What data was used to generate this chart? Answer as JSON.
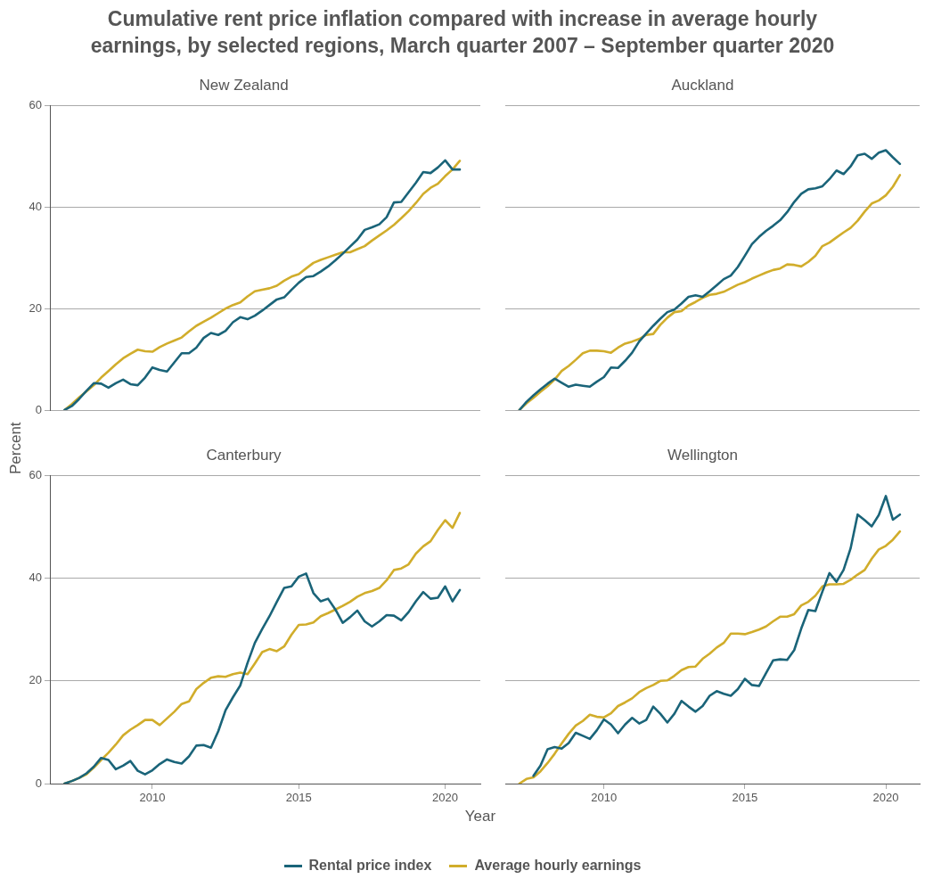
{
  "chart_data": [
    {
      "type": "line",
      "title": "Cumulative rent price inflation compared with increase in average hourly earnings, by selected regions, March quarter 2007 – September quarter 2020",
      "subtitle": "New Zealand",
      "x": [
        2007,
        2007.25,
        2007.5,
        2007.75,
        2008,
        2008.25,
        2008.5,
        2008.75,
        2009,
        2009.25,
        2009.5,
        2009.75,
        2010,
        2010.25,
        2010.5,
        2010.75,
        2011,
        2011.25,
        2011.5,
        2011.75,
        2012,
        2012.25,
        2012.5,
        2012.75,
        2013,
        2013.25,
        2013.5,
        2013.75,
        2014,
        2014.25,
        2014.5,
        2014.75,
        2015,
        2015.25,
        2015.5,
        2015.75,
        2016,
        2016.25,
        2016.5,
        2016.75,
        2017,
        2017.25,
        2017.5,
        2017.75,
        2018,
        2018.25,
        2018.5,
        2018.75,
        2019,
        2019.25,
        2019.5,
        2019.75,
        2020,
        2020.25,
        2020.5
      ],
      "series": [
        {
          "name": "Rental price index",
          "color": "#1a6479",
          "values": [
            0,
            0.8,
            2.2,
            3.8,
            5.3,
            5.2,
            4.4,
            5.3,
            6.0,
            5.1,
            4.9,
            6.4,
            8.4,
            7.9,
            7.6,
            9.4,
            11.2,
            11.2,
            12.3,
            14.2,
            15.2,
            14.8,
            15.6,
            17.3,
            18.3,
            17.9,
            18.6,
            19.6,
            20.7,
            21.8,
            22.2,
            23.7,
            25.1,
            26.2,
            26.4,
            27.3,
            28.3,
            29.5,
            30.8,
            32.2,
            33.6,
            35.5,
            36.0,
            36.6,
            38.0,
            40.9,
            41.0,
            42.9,
            44.8,
            46.9,
            46.7,
            47.8,
            49.2,
            47.4,
            47.4
          ]
        },
        {
          "name": "Average hourly earnings",
          "color": "#d1ad2b",
          "values": [
            0,
            1.2,
            2.5,
            3.7,
            4.9,
            6.4,
            7.7,
            9.0,
            10.2,
            11.1,
            11.9,
            11.6,
            11.5,
            12.4,
            13.1,
            13.7,
            14.3,
            15.5,
            16.6,
            17.4,
            18.2,
            19.1,
            20.0,
            20.7,
            21.2,
            22.4,
            23.4,
            23.7,
            24.0,
            24.5,
            25.5,
            26.3,
            26.8,
            27.9,
            29.0,
            29.6,
            30.1,
            30.6,
            31.1,
            31.1,
            31.7,
            32.3,
            33.4,
            34.4,
            35.4,
            36.5,
            37.8,
            39.2,
            40.8,
            42.6,
            43.8,
            44.6,
            46.1,
            47.4,
            49.1
          ]
        }
      ],
      "xlim": [
        2006.5,
        2021.2
      ],
      "xticks": [
        2010,
        2015,
        2020
      ],
      "ylim": [
        0,
        60
      ],
      "yticks": [
        0,
        20,
        40,
        60
      ],
      "grid": "y",
      "tick_labels": "y",
      "legend": "bottom",
      "marker": "none",
      "line_style": "solid"
    },
    {
      "type": "line",
      "subtitle": "Auckland",
      "x": [
        2007,
        2007.25,
        2007.5,
        2007.75,
        2008,
        2008.25,
        2008.5,
        2008.75,
        2009,
        2009.25,
        2009.5,
        2009.75,
        2010,
        2010.25,
        2010.5,
        2010.75,
        2011,
        2011.25,
        2011.5,
        2011.75,
        2012,
        2012.25,
        2012.5,
        2012.75,
        2013,
        2013.25,
        2013.5,
        2013.75,
        2014,
        2014.25,
        2014.5,
        2014.75,
        2015,
        2015.25,
        2015.5,
        2015.75,
        2016,
        2016.25,
        2016.5,
        2016.75,
        2017,
        2017.25,
        2017.5,
        2017.75,
        2018,
        2018.25,
        2018.5,
        2018.75,
        2019,
        2019.25,
        2019.5,
        2019.75,
        2020,
        2020.25,
        2020.5
      ],
      "series": [
        {
          "color": "#1a6479",
          "values": [
            0,
            1.6,
            2.9,
            4.1,
            5.2,
            6.2,
            5.4,
            4.6,
            5.0,
            4.8,
            4.6,
            5.6,
            6.5,
            8.4,
            8.3,
            9.7,
            11.3,
            13.5,
            15.1,
            16.6,
            18.0,
            19.3,
            19.8,
            21.0,
            22.3,
            22.6,
            22.3,
            23.4,
            24.6,
            25.8,
            26.5,
            28.2,
            30.4,
            32.7,
            34.1,
            35.3,
            36.3,
            37.4,
            39.0,
            41.0,
            42.6,
            43.5,
            43.7,
            44.1,
            45.5,
            47.2,
            46.5,
            48.0,
            50.2,
            50.5,
            49.5,
            50.7,
            51.2,
            49.8,
            48.5
          ]
        },
        {
          "color": "#d1ad2b",
          "values": [
            0,
            1.3,
            2.4,
            3.6,
            4.7,
            6.0,
            7.7,
            8.7,
            9.9,
            11.2,
            11.7,
            11.7,
            11.6,
            11.3,
            12.3,
            13.1,
            13.5,
            14.0,
            14.8,
            15.0,
            16.8,
            18.2,
            19.3,
            19.5,
            20.6,
            21.3,
            22.1,
            22.7,
            22.9,
            23.3,
            24.0,
            24.7,
            25.2,
            25.9,
            26.5,
            27.1,
            27.6,
            27.9,
            28.7,
            28.6,
            28.3,
            29.2,
            30.4,
            32.3,
            33.0,
            34.0,
            35.0,
            35.9,
            37.3,
            39.1,
            40.7,
            41.3,
            42.3,
            44.0,
            46.3
          ]
        }
      ],
      "xlim": [
        2006.5,
        2021.2
      ],
      "xticks": [
        2010,
        2015,
        2020
      ],
      "ylim": [
        0,
        60
      ],
      "yticks": [
        0,
        20,
        40,
        60
      ],
      "grid": "y",
      "tick_labels": false,
      "marker": "none",
      "line_style": "solid"
    },
    {
      "type": "line",
      "subtitle": "Canterbury",
      "xlabel": "Year",
      "ylabel": "Percent",
      "x": [
        2007,
        2007.25,
        2007.5,
        2007.75,
        2008,
        2008.25,
        2008.5,
        2008.75,
        2009,
        2009.25,
        2009.5,
        2009.75,
        2010,
        2010.25,
        2010.5,
        2010.75,
        2011,
        2011.25,
        2011.5,
        2011.75,
        2012,
        2012.25,
        2012.5,
        2012.75,
        2013,
        2013.25,
        2013.5,
        2013.75,
        2014,
        2014.25,
        2014.5,
        2014.75,
        2015,
        2015.25,
        2015.5,
        2015.75,
        2016,
        2016.25,
        2016.5,
        2016.75,
        2017,
        2017.25,
        2017.5,
        2017.75,
        2018,
        2018.25,
        2018.5,
        2018.75,
        2019,
        2019.25,
        2019.5,
        2019.75,
        2020,
        2020.25,
        2020.5
      ],
      "series": [
        {
          "color": "#1a6479",
          "values": [
            0,
            0.5,
            1.1,
            2.0,
            3.3,
            5.0,
            4.6,
            2.8,
            3.5,
            4.4,
            2.5,
            1.8,
            2.6,
            3.8,
            4.7,
            4.2,
            3.9,
            5.3,
            7.4,
            7.5,
            7.0,
            10.2,
            14.3,
            16.8,
            19.1,
            23.5,
            27.4,
            30.1,
            32.6,
            35.4,
            38.1,
            38.4,
            40.3,
            40.9,
            37.1,
            35.5,
            36.0,
            33.9,
            31.3,
            32.4,
            33.7,
            31.6,
            30.6,
            31.6,
            32.8,
            32.7,
            31.8,
            33.4,
            35.5,
            37.3,
            36.0,
            36.2,
            38.4,
            35.5,
            37.7
          ]
        },
        {
          "color": "#d1ad2b",
          "values": [
            0,
            0.5,
            1.1,
            1.8,
            3.1,
            4.6,
            6.0,
            7.6,
            9.4,
            10.5,
            11.4,
            12.4,
            12.4,
            11.4,
            12.7,
            14.0,
            15.5,
            16.0,
            18.4,
            19.6,
            20.6,
            20.9,
            20.8,
            21.3,
            21.6,
            21.3,
            23.4,
            25.6,
            26.2,
            25.8,
            26.7,
            29.0,
            30.9,
            31.0,
            31.4,
            32.6,
            33.2,
            33.9,
            34.6,
            35.4,
            36.4,
            37.1,
            37.5,
            38.1,
            39.6,
            41.6,
            41.9,
            42.7,
            44.8,
            46.2,
            47.2,
            49.4,
            51.3,
            49.8,
            52.7
          ]
        }
      ],
      "xlim": [
        2006.5,
        2021.2
      ],
      "xticks": [
        2010,
        2015,
        2020
      ],
      "ylim": [
        0,
        60
      ],
      "yticks": [
        0,
        20,
        40,
        60
      ],
      "grid": "y",
      "marker": "none",
      "line_style": "solid"
    },
    {
      "type": "line",
      "subtitle": "Wellington",
      "x": [
        2007,
        2007.25,
        2007.5,
        2007.75,
        2008,
        2008.25,
        2008.5,
        2008.75,
        2009,
        2009.25,
        2009.5,
        2009.75,
        2010,
        2010.25,
        2010.5,
        2010.75,
        2011,
        2011.25,
        2011.5,
        2011.75,
        2012,
        2012.25,
        2012.5,
        2012.75,
        2013,
        2013.25,
        2013.5,
        2013.75,
        2014,
        2014.25,
        2014.5,
        2014.75,
        2015,
        2015.25,
        2015.5,
        2015.75,
        2016,
        2016.25,
        2016.5,
        2016.75,
        2017,
        2017.25,
        2017.5,
        2017.75,
        2018,
        2018.25,
        2018.5,
        2018.75,
        2019,
        2019.25,
        2019.5,
        2019.75,
        2020,
        2020.25,
        2020.5
      ],
      "series": [
        {
          "color": "#1a6479",
          "values": [
            null,
            null,
            1.5,
            3.5,
            6.7,
            7.1,
            6.8,
            7.9,
            9.9,
            9.3,
            8.7,
            10.4,
            12.5,
            11.5,
            9.8,
            11.5,
            12.8,
            11.7,
            12.4,
            15.0,
            13.6,
            11.9,
            13.6,
            16.1,
            15.0,
            14.0,
            15.1,
            17.1,
            18.0,
            17.5,
            17.1,
            18.4,
            20.4,
            19.2,
            19.0,
            21.5,
            24.0,
            24.2,
            24.1,
            26.0,
            30.2,
            33.8,
            33.6,
            37.4,
            41.0,
            39.3,
            41.6,
            45.8,
            52.4,
            51.3,
            50.1,
            52.3,
            56.0,
            51.4,
            52.4
          ]
        },
        {
          "color": "#d1ad2b",
          "values": [
            0,
            0.9,
            1.2,
            2.4,
            4.0,
            5.8,
            7.8,
            9.7,
            11.3,
            12.2,
            13.4,
            13.0,
            12.9,
            13.7,
            15.1,
            15.8,
            16.6,
            17.8,
            18.6,
            19.2,
            20.0,
            20.1,
            21.0,
            22.1,
            22.7,
            22.8,
            24.3,
            25.3,
            26.5,
            27.4,
            29.2,
            29.2,
            29.1,
            29.5,
            30.0,
            30.6,
            31.6,
            32.5,
            32.5,
            33.0,
            34.7,
            35.4,
            36.6,
            38.4,
            38.8,
            38.8,
            38.9,
            39.7,
            40.7,
            41.6,
            43.8,
            45.6,
            46.3,
            47.5,
            49.1
          ]
        }
      ],
      "xlim": [
        2006.5,
        2021.2
      ],
      "xticks": [
        2010,
        2015,
        2020
      ],
      "ylim": [
        0,
        60
      ],
      "yticks": [
        0,
        20,
        40,
        60
      ],
      "grid": "y",
      "tick_labels": "x",
      "marker": "none",
      "line_style": "solid"
    }
  ]
}
